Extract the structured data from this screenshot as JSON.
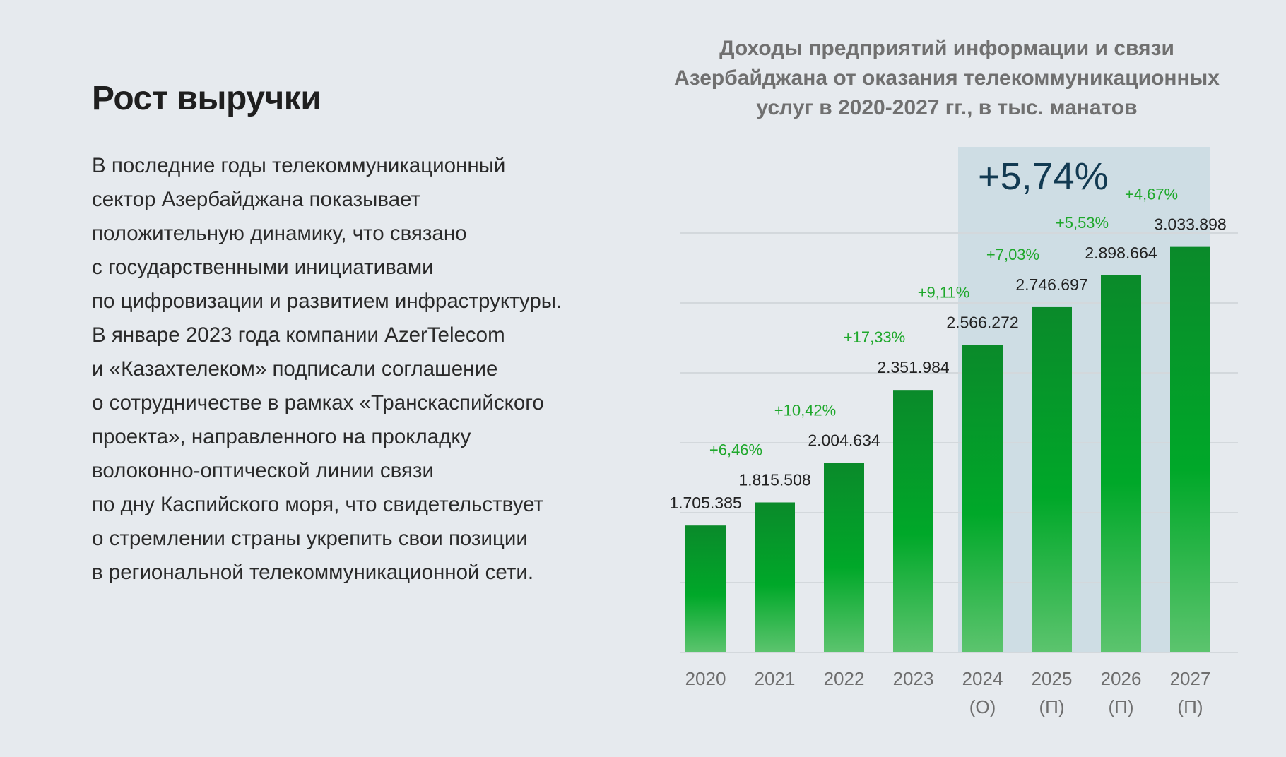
{
  "heading": "Рост выручки",
  "paragraph_lines": [
    "В последние годы телекоммуникационный",
    "сектор Азербайджана показывает",
    "положительную динамику, что связано",
    "с государственными инициативами",
    "по цифровизации и развитием инфраструктуры.",
    "В январе 2023 года компании AzerTelecom",
    "и «Казахтелеком» подписали соглашение",
    "о сотрудничестве в рамках «Транскаспийского",
    "проекта», направленного на прокладку",
    "волоконно-оптической линии связи",
    "по дну Каспийского моря, что свидетельствует",
    "о стремлении страны укрепить свои позиции",
    "в региональной телекоммуникационной сети."
  ],
  "chart_data": {
    "type": "bar",
    "title_lines": [
      "Доходы предприятий информации и связи",
      "Азербайджана от оказания телекоммуникационных",
      "услуг в 2020-2027 гг., в тыс. манатов"
    ],
    "categories": [
      [
        "2020"
      ],
      [
        "2021"
      ],
      [
        "2022"
      ],
      [
        "2023"
      ],
      [
        "2024",
        "(О)"
      ],
      [
        "2025",
        "(П)"
      ],
      [
        "2026",
        "(П)"
      ],
      [
        "2027",
        "(П)"
      ]
    ],
    "values": [
      1705385,
      1815508,
      2004634,
      2351984,
      2566272,
      2746697,
      2898664,
      3033898
    ],
    "value_labels": [
      "1.705.385",
      "1.815.508",
      "2.004.634",
      "2.351.984",
      "2.566.272",
      "2.746.697",
      "2.898.664",
      "3.033.898"
    ],
    "growth_labels": [
      "+6,46%",
      "+10,42%",
      "+17,33%",
      "+9,11%",
      "+7,03%",
      "+5,53%",
      "+4,67%"
    ],
    "highlight": {
      "label": "+5,74%",
      "from_category": 4,
      "to_category": 7
    },
    "ylim": [
      1100000,
      3100000
    ],
    "grid": true,
    "colors": {
      "bar_top": "#0a8a2a",
      "bar_mid": "#00a829",
      "bar_bottom": "#5cc46e",
      "growth": "#1fa82c",
      "highlight_band": "#c6d8e0",
      "highlight_text": "#123a52"
    }
  }
}
